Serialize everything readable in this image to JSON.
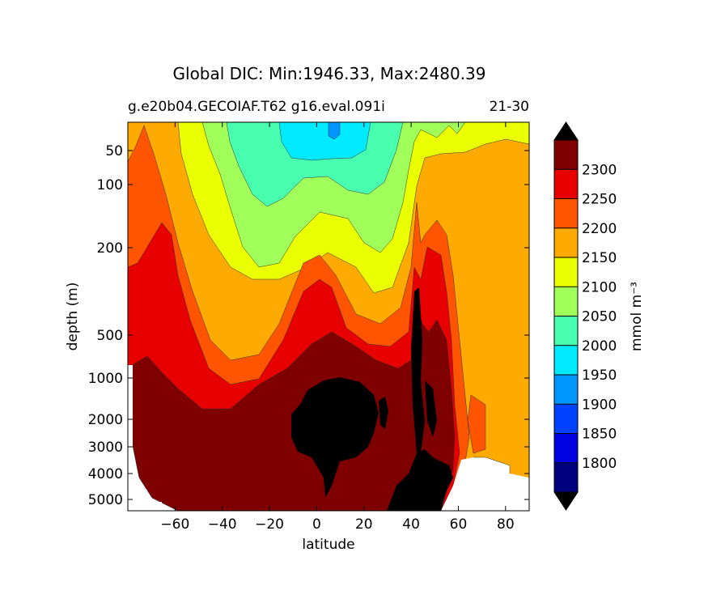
{
  "chart_data": {
    "type": "contour",
    "title": "Global DIC: Min:1946.33, Max:2480.39",
    "subtitle_left": "g.e20b04.GECOIAF.T62 g16.eval.091i",
    "subtitle_right": "21-30",
    "xlabel": "latitude",
    "ylabel": "depth (m)",
    "xlim": [
      -80,
      90
    ],
    "x_ticks": [
      -60,
      -40,
      -20,
      0,
      20,
      40,
      60,
      80
    ],
    "x_tick_labels": [
      "−60",
      "−40",
      "−20",
      "0",
      "20",
      "40",
      "60",
      "80"
    ],
    "y_ticks": [
      50,
      100,
      200,
      500,
      1000,
      2000,
      3000,
      4000,
      5000
    ],
    "y_tick_labels": [
      "50",
      "100",
      "200",
      "500",
      "1000",
      "2000",
      "3000",
      "4000",
      "5000"
    ],
    "colorbar": {
      "label": "mmol m⁻³",
      "levels": [
        1800,
        1850,
        1900,
        1950,
        2000,
        2050,
        2100,
        2150,
        2200,
        2250,
        2300
      ],
      "level_labels": [
        "1800",
        "1850",
        "1900",
        "1950",
        "2000",
        "2050",
        "2100",
        "2150",
        "2200",
        "2250",
        "2300"
      ],
      "colors": [
        "#00007f",
        "#0000e0",
        "#0040ff",
        "#0096ff",
        "#00eaff",
        "#48ffb0",
        "#a0ff58",
        "#eaff00",
        "#ffaa00",
        "#ff5500",
        "#e80000",
        "#7f0000"
      ],
      "extend": "both",
      "under_color": "#000000",
      "over_color": "#000000"
    },
    "min_value": 1946.33,
    "max_value": 2480.39
  }
}
